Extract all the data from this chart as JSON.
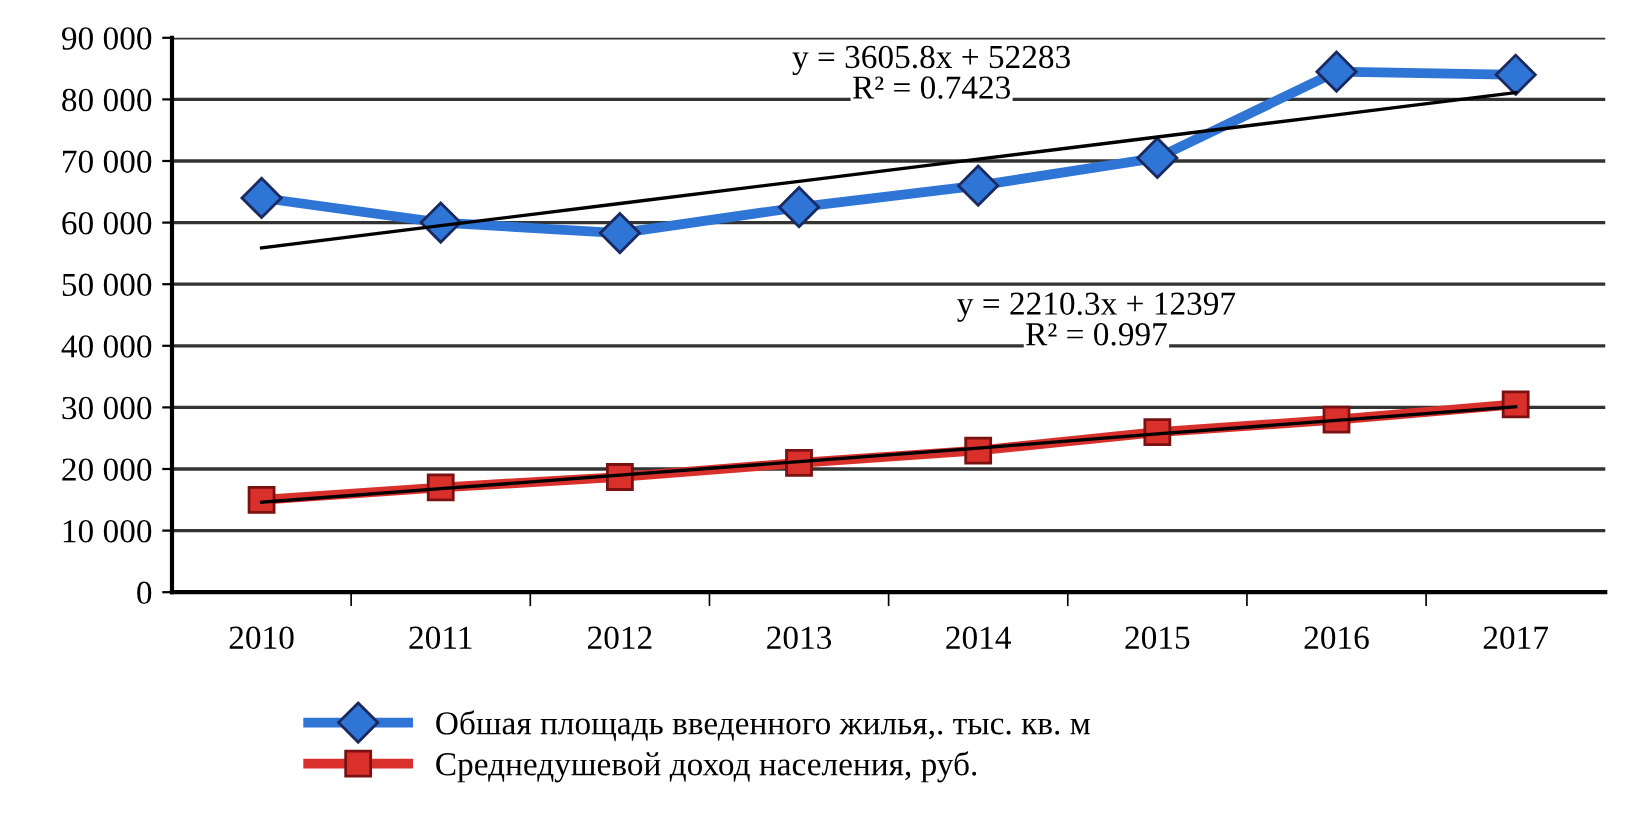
{
  "chart_data": {
    "type": "line",
    "categories": [
      "2010",
      "2011",
      "2012",
      "2013",
      "2014",
      "2015",
      "2016",
      "2017"
    ],
    "series": [
      {
        "name": "Обшая площадь введенного жилья,. тыс. кв. м",
        "color": "#2e75d6",
        "marker": "diamond",
        "values": [
          64000,
          60000,
          58300,
          62500,
          66000,
          70500,
          84500,
          84000
        ]
      },
      {
        "name": "Среднедушевой доход населения, руб.",
        "color": "#d9302c",
        "marker": "square",
        "values": [
          15000,
          17000,
          18700,
          21000,
          23000,
          26000,
          28000,
          30500
        ]
      },
      {
        "color": "#000000",
        "marker": "none",
        "values": [
          55900,
          59500,
          63100,
          66700,
          70300,
          73900,
          77500,
          81100
        ]
      },
      {
        "color": "#000000",
        "marker": "none",
        "values": [
          14600,
          16800,
          19000,
          21200,
          23400,
          25700,
          27900,
          30100
        ]
      }
    ],
    "ylim": [
      0,
      90000
    ],
    "yticks": [
      0,
      {
        "value": 10000,
        "label": "10 000"
      },
      {
        "value": 20000,
        "label": "20 000"
      },
      {
        "value": 30000,
        "label": "30 000"
      },
      {
        "value": 40000,
        "label": "40 000"
      },
      {
        "value": 50000,
        "label": "50 000"
      },
      {
        "value": 60000,
        "label": "60 000"
      },
      {
        "value": 70000,
        "label": "70 000"
      },
      {
        "value": 80000,
        "label": "80 000"
      },
      {
        "value": 90000,
        "label": "90 000"
      }
    ],
    "annotations": [
      "y = 3605.8x + 52283",
      "R² = 0.7423",
      "y = 2210.3x + 12397",
      "R² = 0.997"
    ],
    "grid": "y",
    "legend": "bottom"
  }
}
